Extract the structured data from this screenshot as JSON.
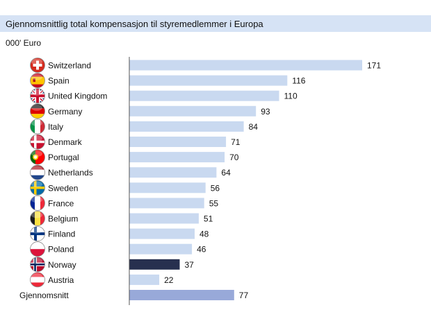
{
  "chart_data": {
    "type": "bar",
    "orientation": "horizontal",
    "title": "Gjennomsnittlig total kompensasjon til styremedlemmer i Europa",
    "unit_label": "000' Euro",
    "categories": [
      "Switzerland",
      "Spain",
      "United Kingdom",
      "Germany",
      "Italy",
      "Denmark",
      "Portugal",
      "Netherlands",
      "Sweden",
      "France",
      "Belgium",
      "Finland",
      "Poland",
      "Norway",
      "Austria",
      "Gjennomsnitt"
    ],
    "values": [
      171,
      116,
      110,
      93,
      84,
      71,
      70,
      64,
      56,
      55,
      51,
      48,
      46,
      37,
      22,
      77
    ],
    "flag_icons": [
      "switzerland-flag-icon",
      "spain-flag-icon",
      "united-kingdom-flag-icon",
      "germany-flag-icon",
      "italy-flag-icon",
      "denmark-flag-icon",
      "portugal-flag-icon",
      "netherlands-flag-icon",
      "sweden-flag-icon",
      "france-flag-icon",
      "belgium-flag-icon",
      "finland-flag-icon",
      "poland-flag-icon",
      "norway-flag-icon",
      "austria-flag-icon",
      ""
    ],
    "xlim": [
      0,
      190
    ],
    "grid": false,
    "colors": {
      "default_bar": "#c9d9f0",
      "highlight_bar": "#27304f",
      "average_bar": "#98a9d9",
      "title_band": "#d6e3f5",
      "axis_line": "#555555"
    },
    "highlight_index": 13,
    "average_index": 15
  }
}
